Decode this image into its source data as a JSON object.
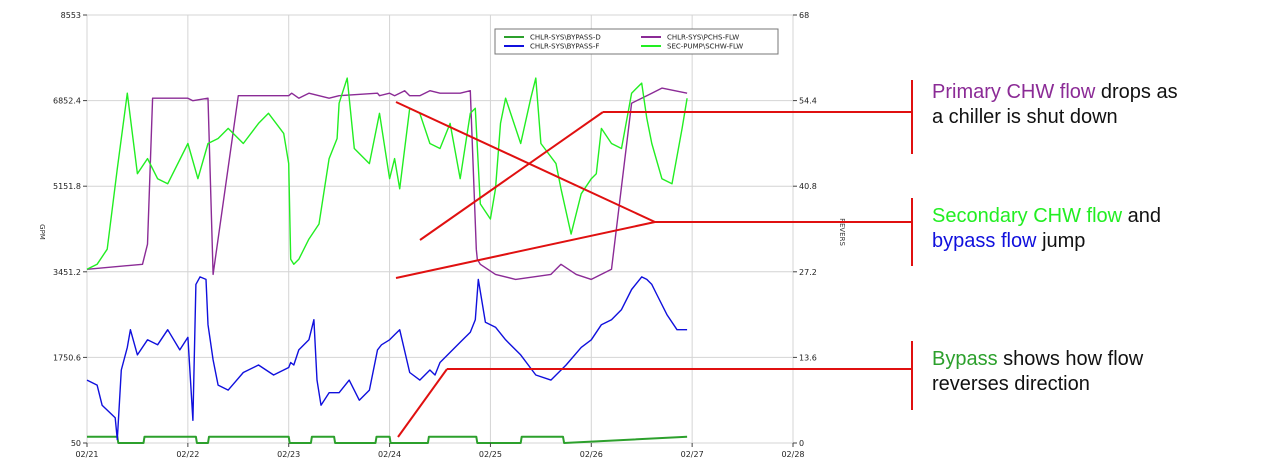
{
  "chart_data": {
    "type": "line",
    "x_tick_labels": [
      "02/21",
      "02/22",
      "02/23",
      "02/24",
      "02/25",
      "02/26",
      "02/27",
      "02/28"
    ],
    "x_range": [
      "02/21",
      "02/28"
    ],
    "y_left": {
      "label": "GPM",
      "ticks": [
        50,
        1750.6,
        3451.2,
        5151.8,
        6852.4,
        8553
      ],
      "range": [
        50,
        8553
      ]
    },
    "y_right": {
      "label": "REVERS",
      "ticks": [
        "0",
        "13.6",
        "27.2",
        "40.8",
        "54.4",
        "68"
      ],
      "range": [
        0,
        68
      ]
    },
    "grid": true,
    "legend_position": "top-right",
    "series": [
      {
        "name": "CHLR-SYS\\BYPASS-D",
        "color": "#2ca02c",
        "axis": "right",
        "x": [
          2.0,
          2.3,
          2.31,
          2.56,
          2.57,
          3.08,
          3.09,
          3.2,
          3.21,
          4.0,
          4.01,
          4.22,
          4.23,
          4.45,
          4.46,
          4.86,
          4.87,
          5.0,
          5.01,
          5.38,
          5.39,
          5.86,
          5.87,
          6.3,
          6.31,
          6.72,
          6.73,
          7.95
        ],
        "y": [
          1,
          1,
          0,
          0,
          1,
          1,
          0,
          0,
          1,
          1,
          0,
          0,
          1,
          1,
          0,
          0,
          1,
          1,
          0,
          0,
          1,
          1,
          0,
          0,
          1,
          1,
          0,
          1
        ]
      },
      {
        "name": "CHLR-SYS\\BYPASS-F",
        "color": "#1010dd",
        "axis": "left",
        "x": [
          2.0,
          2.1,
          2.15,
          2.28,
          2.3,
          2.34,
          2.4,
          2.43,
          2.5,
          2.6,
          2.7,
          2.8,
          2.92,
          3.0,
          3.05,
          3.08,
          3.12,
          3.18,
          3.2,
          3.25,
          3.3,
          3.4,
          3.55,
          3.7,
          3.85,
          4.0,
          4.02,
          4.05,
          4.1,
          4.2,
          4.25,
          4.28,
          4.32,
          4.4,
          4.5,
          4.6,
          4.7,
          4.8,
          4.86,
          4.88,
          4.92,
          5.0,
          5.05,
          5.1,
          5.2,
          5.3,
          5.4,
          5.45,
          5.5,
          5.6,
          5.7,
          5.8,
          5.85,
          5.88,
          5.95,
          6.05,
          6.15,
          6.3,
          6.45,
          6.6,
          6.75,
          6.9,
          7.0,
          7.1,
          7.2,
          7.3,
          7.4,
          7.5,
          7.55,
          7.6,
          7.65,
          7.75,
          7.85,
          7.95
        ],
        "y": [
          1300,
          1200,
          800,
          550,
          120,
          1500,
          1950,
          2300,
          1800,
          2100,
          2000,
          2300,
          1900,
          2150,
          500,
          3200,
          3350,
          3300,
          2400,
          1700,
          1200,
          1100,
          1450,
          1600,
          1400,
          1550,
          1650,
          1600,
          1900,
          2100,
          2500,
          1300,
          800,
          1050,
          1050,
          1300,
          900,
          1100,
          1700,
          1900,
          2000,
          2100,
          2200,
          2300,
          1450,
          1300,
          1500,
          1400,
          1650,
          1850,
          2050,
          2250,
          2500,
          3300,
          2450,
          2350,
          2100,
          1800,
          1400,
          1300,
          1600,
          1950,
          2100,
          2400,
          2500,
          2700,
          3100,
          3350,
          3300,
          3200,
          3000,
          2600,
          2300,
          2300
        ]
      },
      {
        "name": "CHLR-SYS\\PCHS-FLW",
        "color": "#8b2b96",
        "axis": "left",
        "x": [
          2.0,
          2.55,
          2.6,
          2.65,
          3.0,
          3.05,
          3.2,
          3.25,
          3.5,
          3.8,
          4.0,
          4.03,
          4.1,
          4.15,
          4.2,
          4.3,
          4.4,
          4.5,
          4.88,
          4.9,
          5.0,
          5.05,
          5.15,
          5.2,
          5.3,
          5.4,
          5.5,
          5.7,
          5.8,
          5.86,
          5.87,
          5.9,
          6.05,
          6.25,
          6.6,
          6.7,
          6.85,
          7.0,
          7.2,
          7.4,
          7.5,
          7.6,
          7.7,
          7.95
        ],
        "y": [
          3500,
          3600,
          4000,
          6900,
          6900,
          6850,
          6900,
          3400,
          6950,
          6950,
          6950,
          7000,
          6900,
          6950,
          7000,
          6950,
          6900,
          6950,
          7000,
          6950,
          7000,
          6950,
          7050,
          6950,
          6950,
          7050,
          7000,
          7000,
          7050,
          3900,
          3700,
          3600,
          3400,
          3300,
          3400,
          3600,
          3400,
          3300,
          3500,
          6800,
          6900,
          7000,
          7100,
          7000
        ]
      },
      {
        "name": "SEC-PUMP\\SCHW-FLW",
        "color": "#22ee22",
        "axis": "left",
        "x": [
          2.0,
          2.1,
          2.2,
          2.3,
          2.4,
          2.5,
          2.6,
          2.7,
          2.8,
          3.0,
          3.1,
          3.2,
          3.3,
          3.4,
          3.55,
          3.7,
          3.8,
          3.95,
          4.0,
          4.02,
          4.05,
          4.1,
          4.2,
          4.3,
          4.4,
          4.48,
          4.5,
          4.58,
          4.65,
          4.8,
          4.9,
          5.0,
          5.05,
          5.1,
          5.2,
          5.3,
          5.4,
          5.5,
          5.6,
          5.7,
          5.8,
          5.85,
          5.9,
          6.0,
          6.05,
          6.1,
          6.15,
          6.3,
          6.4,
          6.45,
          6.5,
          6.65,
          6.7,
          6.8,
          6.9,
          7.0,
          7.05,
          7.1,
          7.2,
          7.3,
          7.4,
          7.5,
          7.55,
          7.6,
          7.7,
          7.8,
          7.9,
          7.95
        ],
        "y": [
          3500,
          3600,
          3900,
          5500,
          7000,
          5400,
          5700,
          5300,
          5200,
          6000,
          5300,
          6000,
          6100,
          6300,
          6000,
          6400,
          6600,
          6200,
          5600,
          3700,
          3600,
          3700,
          4100,
          4400,
          5700,
          6100,
          6800,
          7300,
          5900,
          5600,
          6600,
          5300,
          5700,
          5100,
          6700,
          6600,
          6000,
          5900,
          6400,
          5300,
          6600,
          6700,
          4800,
          4500,
          5100,
          6400,
          6900,
          6000,
          6900,
          7300,
          6000,
          5600,
          5100,
          4200,
          5000,
          5300,
          5400,
          6300,
          6000,
          5900,
          7000,
          7200,
          6500,
          6000,
          5300,
          5200,
          6300,
          6900
        ]
      }
    ],
    "annotations": [
      {
        "parts": [
          {
            "text": "Primary",
            "color": "#8b2b96"
          },
          {
            "text": " "
          },
          {
            "text": "CHW flow",
            "color": "#8b2b96"
          },
          {
            "text": " drops as a chiller is shut down",
            "color": "#111111"
          }
        ]
      },
      {
        "parts": [
          {
            "text": "Secondary",
            "color": "#22ee22"
          },
          {
            "text": " "
          },
          {
            "text": "CHW flow",
            "color": "#22ee22"
          },
          {
            "text": " and ",
            "color": "#111111"
          },
          {
            "text": "bypass",
            "color": "#1010dd"
          },
          {
            "text": " "
          },
          {
            "text": "flow",
            "color": "#1010dd"
          },
          {
            "text": " jump",
            "color": "#111111"
          }
        ]
      },
      {
        "parts": [
          {
            "text": "Bypass",
            "color": "#2ca02c"
          },
          {
            "text": " shows how flow reverses direction",
            "color": "#111111"
          }
        ]
      }
    ],
    "annotation_color": "#e01010"
  }
}
